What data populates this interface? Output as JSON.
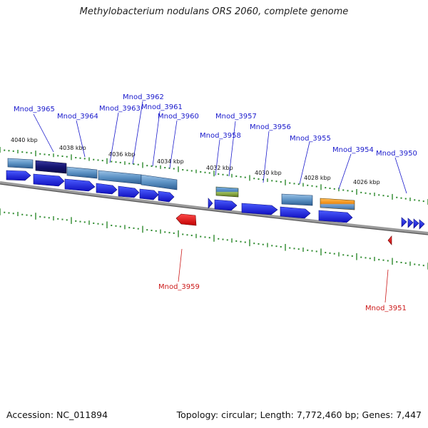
{
  "title": "Methylobacterium nodulans ORS 2060, complete genome",
  "accession": "Accession: NC_011894",
  "stats": "Topology: circular; Length: 7,772,460 bp; Genes: 7,447",
  "colors": {
    "forward_label": "#1a1acc",
    "reverse_label": "#cc1a1a",
    "gene_forward": "#1f2fe6",
    "gene_reverse": "#e01010",
    "ticks": "#2d8a2d",
    "backbone": "#7a7a7a"
  },
  "scale_labels": [
    "4040 kbp",
    "4038 kbp",
    "4036 kbp",
    "4034 kbp",
    "4032 kbp",
    "4030 kbp",
    "4028 kbp",
    "4026 kbp"
  ],
  "forward_genes": [
    "Mnod_3965",
    "Mnod_3964",
    "Mnod_3963",
    "Mnod_3962",
    "Mnod_3961",
    "Mnod_3960",
    "Mnod_3958",
    "Mnod_3957",
    "Mnod_3956",
    "Mnod_3955",
    "Mnod_3954",
    "Mnod_3950"
  ],
  "reverse_genes": [
    "Mnod_3959",
    "Mnod_3951"
  ]
}
